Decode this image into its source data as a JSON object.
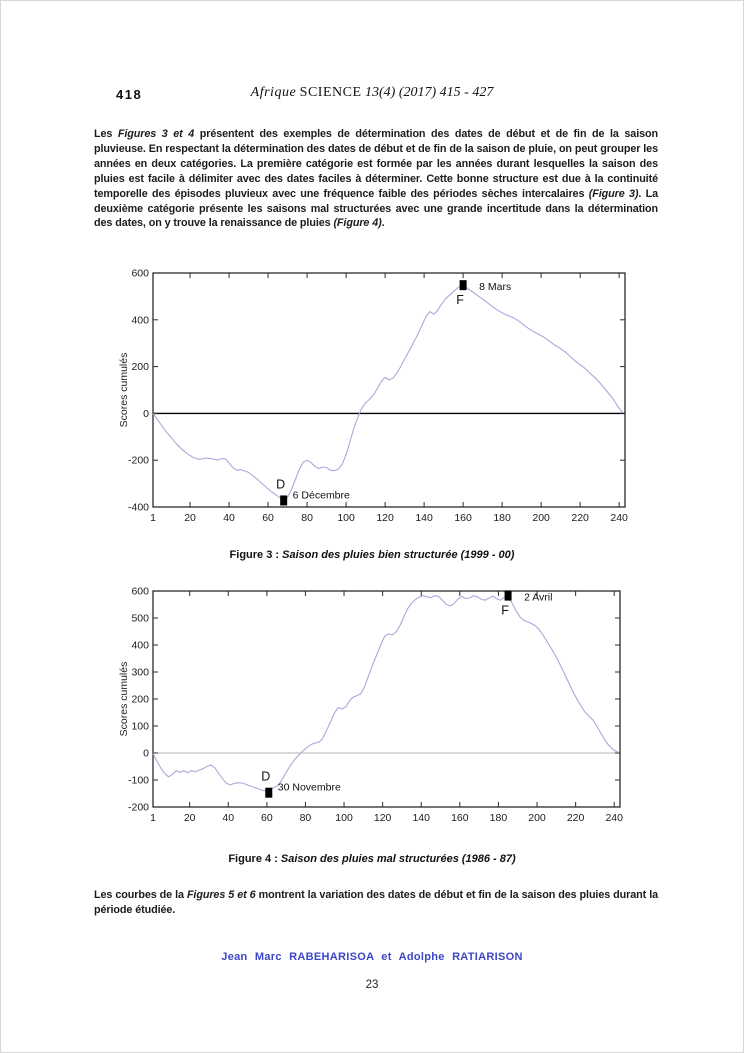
{
  "header": {
    "page_number": "418",
    "journal_title_word": "Afrique",
    "journal_title_science": "SCIENCE",
    "journal_title_rest": "13(4) (2017) 415 - 427"
  },
  "paragraphs": {
    "p1_segments": [
      {
        "t": "Les ",
        "s": "n"
      },
      {
        "t": "Figures 3 et 4",
        "s": "bi"
      },
      {
        "t": " présentent des exemples de détermination des dates de début et de fin de la saison pluvieuse. En respectant la détermination des dates de début et de fin de la saison de pluie, on peut grouper les années en deux catégories. La première catégorie est formée par les années durant lesquelles la saison des pluies est facile à délimiter avec des dates faciles à déterminer. Cette bonne structure est due à la continuité temporelle des épisodes pluvieux avec une fréquence faible des périodes sèches intercalaires ",
        "s": "n"
      },
      {
        "t": "(Figure 3)",
        "s": "bi"
      },
      {
        "t": ". La deuxième catégorie présente les saisons mal structurées avec une grande incertitude dans la détermination des dates, on y trouve la renaissance de pluies ",
        "s": "n"
      },
      {
        "t": "(Figure 4)",
        "s": "bi"
      },
      {
        "t": ".",
        "s": "n"
      }
    ],
    "p2_segments": [
      {
        "t": "Les courbes de la ",
        "s": "n"
      },
      {
        "t": "Figures 5 et 6",
        "s": "bi"
      },
      {
        "t": " montrent la variation des dates de début et fin de la saison des pluies durant la période étudiée.",
        "s": "n"
      }
    ]
  },
  "figures": {
    "fig3_caption_label": "Figure 3 :",
    "fig3_caption_text": "Saison des pluies bien structurée (1999 - 00)",
    "fig4_caption_label": "Figure 4 :",
    "fig4_caption_text": "Saison des pluies mal structurées (1986 - 87)"
  },
  "footer": {
    "authors": "Jean Marc RABEHARISOA et Adolphe RATIARISON",
    "authors_color": "#3b47c6",
    "page_number": "23"
  },
  "chart_data": [
    {
      "id": "figure3-chart",
      "type": "line",
      "title": "Saison des pluies bien structurée (1999 - 00)",
      "xlabel": "",
      "ylabel": "Scores cumulés",
      "xlim": [
        1,
        243
      ],
      "ylim": [
        -400,
        600
      ],
      "xticks": [
        1,
        20,
        40,
        60,
        80,
        100,
        120,
        140,
        160,
        180,
        200,
        220,
        240
      ],
      "yticks": [
        -400,
        -200,
        0,
        200,
        400,
        600
      ],
      "grid": false,
      "zero_line": {
        "show": true,
        "color": "#000000",
        "width": 1.4
      },
      "line_color": "#a9a9d9",
      "series": [
        {
          "name": "Scores cumulés 1999-00",
          "points": [
            [
              1,
              0
            ],
            [
              4,
              -35
            ],
            [
              7,
              -70
            ],
            [
              10,
              -100
            ],
            [
              13,
              -130
            ],
            [
              16,
              -155
            ],
            [
              19,
              -175
            ],
            [
              22,
              -190
            ],
            [
              25,
              -196
            ],
            [
              28,
              -191
            ],
            [
              31,
              -193
            ],
            [
              34,
              -199
            ],
            [
              36,
              -194
            ],
            [
              38,
              -193
            ],
            [
              40,
              -212
            ],
            [
              42,
              -232
            ],
            [
              44,
              -243
            ],
            [
              46,
              -240
            ],
            [
              48,
              -246
            ],
            [
              50,
              -252
            ],
            [
              52,
              -265
            ],
            [
              55,
              -285
            ],
            [
              58,
              -308
            ],
            [
              61,
              -330
            ],
            [
              64,
              -348
            ],
            [
              66,
              -360
            ],
            [
              68,
              -370
            ],
            [
              70,
              -358
            ],
            [
              72,
              -325
            ],
            [
              74,
              -282
            ],
            [
              76,
              -240
            ],
            [
              78,
              -208
            ],
            [
              80,
              -200
            ],
            [
              82,
              -210
            ],
            [
              84,
              -226
            ],
            [
              86,
              -236
            ],
            [
              88,
              -229
            ],
            [
              90,
              -231
            ],
            [
              92,
              -243
            ],
            [
              94,
              -245
            ],
            [
              96,
              -238
            ],
            [
              98,
              -218
            ],
            [
              100,
              -175
            ],
            [
              102,
              -120
            ],
            [
              104,
              -62
            ],
            [
              106,
              -18
            ],
            [
              108,
              22
            ],
            [
              110,
              45
            ],
            [
              112,
              60
            ],
            [
              114,
              78
            ],
            [
              116,
              106
            ],
            [
              118,
              136
            ],
            [
              120,
              154
            ],
            [
              122,
              143
            ],
            [
              124,
              151
            ],
            [
              126,
              172
            ],
            [
              128,
              200
            ],
            [
              130,
              232
            ],
            [
              133,
              278
            ],
            [
              136,
              325
            ],
            [
              139,
              378
            ],
            [
              141,
              415
            ],
            [
              143,
              435
            ],
            [
              145,
              424
            ],
            [
              147,
              441
            ],
            [
              149,
              468
            ],
            [
              151,
              490
            ],
            [
              153,
              505
            ],
            [
              155,
              520
            ],
            [
              157,
              535
            ],
            [
              159,
              545
            ],
            [
              161,
              542
            ],
            [
              163,
              530
            ],
            [
              165,
              519
            ],
            [
              168,
              500
            ],
            [
              171,
              482
            ],
            [
              174,
              463
            ],
            [
              177,
              445
            ],
            [
              180,
              430
            ],
            [
              183,
              418
            ],
            [
              186,
              408
            ],
            [
              189,
              392
            ],
            [
              192,
              372
            ],
            [
              195,
              355
            ],
            [
              198,
              341
            ],
            [
              201,
              328
            ],
            [
              204,
              310
            ],
            [
              207,
              292
            ],
            [
              210,
              277
            ],
            [
              213,
              258
            ],
            [
              216,
              234
            ],
            [
              219,
              214
            ],
            [
              222,
              196
            ],
            [
              225,
              172
            ],
            [
              228,
              150
            ],
            [
              231,
              122
            ],
            [
              234,
              92
            ],
            [
              237,
              60
            ],
            [
              240,
              22
            ],
            [
              242,
              2
            ]
          ]
        }
      ],
      "markers": [
        {
          "x": 160,
          "y": 548,
          "label": "F",
          "label_pos": "below",
          "annotation": "8 Mars"
        },
        {
          "x": 68,
          "y": -372,
          "label": "D",
          "label_pos": "above",
          "annotation": "6 Décembre"
        }
      ]
    },
    {
      "id": "figure4-chart",
      "type": "line",
      "title": "Saison des pluies mal structurées (1986 - 87)",
      "xlabel": "",
      "ylabel": "Scores cumulés",
      "xlim": [
        1,
        243
      ],
      "ylim": [
        -200,
        600
      ],
      "xticks": [
        1,
        20,
        40,
        60,
        80,
        100,
        120,
        140,
        160,
        180,
        200,
        220,
        240
      ],
      "yticks": [
        -200,
        -100,
        0,
        100,
        200,
        300,
        400,
        500,
        600
      ],
      "grid": false,
      "zero_line": {
        "show": true,
        "color": "#9a9a9a",
        "width": 0.8
      },
      "line_color": "#a9a9d9",
      "series": [
        {
          "name": "Scores cumulés 1986-87",
          "points": [
            [
              1,
              -2
            ],
            [
              3,
              -30
            ],
            [
              5,
              -55
            ],
            [
              7,
              -75
            ],
            [
              9,
              -88
            ],
            [
              11,
              -80
            ],
            [
              13,
              -65
            ],
            [
              15,
              -72
            ],
            [
              17,
              -66
            ],
            [
              19,
              -73
            ],
            [
              21,
              -65
            ],
            [
              23,
              -70
            ],
            [
              25,
              -63
            ],
            [
              27,
              -58
            ],
            [
              29,
              -50
            ],
            [
              31,
              -44
            ],
            [
              33,
              -55
            ],
            [
              35,
              -75
            ],
            [
              37,
              -95
            ],
            [
              39,
              -112
            ],
            [
              41,
              -118
            ],
            [
              43,
              -113
            ],
            [
              45,
              -110
            ],
            [
              47,
              -111
            ],
            [
              49,
              -115
            ],
            [
              51,
              -122
            ],
            [
              53,
              -126
            ],
            [
              55,
              -131
            ],
            [
              57,
              -137
            ],
            [
              59,
              -140
            ],
            [
              61,
              -136
            ],
            [
              63,
              -130
            ],
            [
              65,
              -124
            ],
            [
              67,
              -108
            ],
            [
              69,
              -85
            ],
            [
              71,
              -60
            ],
            [
              73,
              -38
            ],
            [
              75,
              -20
            ],
            [
              77,
              -5
            ],
            [
              79,
              10
            ],
            [
              81,
              22
            ],
            [
              83,
              32
            ],
            [
              85,
              37
            ],
            [
              87,
              40
            ],
            [
              89,
              55
            ],
            [
              91,
              85
            ],
            [
              93,
              115
            ],
            [
              95,
              148
            ],
            [
              97,
              168
            ],
            [
              99,
              163
            ],
            [
              101,
              172
            ],
            [
              103,
              195
            ],
            [
              105,
              208
            ],
            [
              107,
              213
            ],
            [
              109,
              222
            ],
            [
              111,
              252
            ],
            [
              113,
              292
            ],
            [
              115,
              330
            ],
            [
              117,
              365
            ],
            [
              119,
              400
            ],
            [
              121,
              432
            ],
            [
              123,
              441
            ],
            [
              125,
              437
            ],
            [
              127,
              448
            ],
            [
              129,
              472
            ],
            [
              131,
              505
            ],
            [
              133,
              535
            ],
            [
              135,
              555
            ],
            [
              137,
              568
            ],
            [
              139,
              577
            ],
            [
              141,
              583
            ],
            [
              143,
              579
            ],
            [
              145,
              575
            ],
            [
              147,
              583
            ],
            [
              149,
              580
            ],
            [
              151,
              565
            ],
            [
              153,
              550
            ],
            [
              155,
              545
            ],
            [
              157,
              553
            ],
            [
              159,
              570
            ],
            [
              161,
              580
            ],
            [
              163,
              572
            ],
            [
              165,
              574
            ],
            [
              167,
              582
            ],
            [
              169,
              579
            ],
            [
              171,
              570
            ],
            [
              173,
              566
            ],
            [
              175,
              573
            ],
            [
              177,
              581
            ],
            [
              179,
              572
            ],
            [
              181,
              566
            ],
            [
              183,
              577
            ],
            [
              185,
              580
            ],
            [
              187,
              556
            ],
            [
              189,
              528
            ],
            [
              191,
              505
            ],
            [
              193,
              492
            ],
            [
              195,
              486
            ],
            [
              197,
              480
            ],
            [
              199,
              472
            ],
            [
              201,
              458
            ],
            [
              203,
              438
            ],
            [
              205,
              415
            ],
            [
              207,
              392
            ],
            [
              209,
              368
            ],
            [
              211,
              342
            ],
            [
              213,
              312
            ],
            [
              215,
              282
            ],
            [
              217,
              252
            ],
            [
              219,
              222
            ],
            [
              221,
              196
            ],
            [
              223,
              172
            ],
            [
              225,
              150
            ],
            [
              227,
              136
            ],
            [
              229,
              122
            ],
            [
              231,
              100
            ],
            [
              233,
              75
            ],
            [
              235,
              50
            ],
            [
              237,
              30
            ],
            [
              239,
              15
            ],
            [
              241,
              6
            ],
            [
              242,
              4
            ]
          ]
        }
      ],
      "markers": [
        {
          "x": 185,
          "y": 583,
          "label": "F",
          "label_pos": "below",
          "annotation": "2 Avril"
        },
        {
          "x": 61,
          "y": -147,
          "label": "D",
          "label_pos": "above",
          "annotation": "30 Novembre"
        }
      ]
    }
  ]
}
